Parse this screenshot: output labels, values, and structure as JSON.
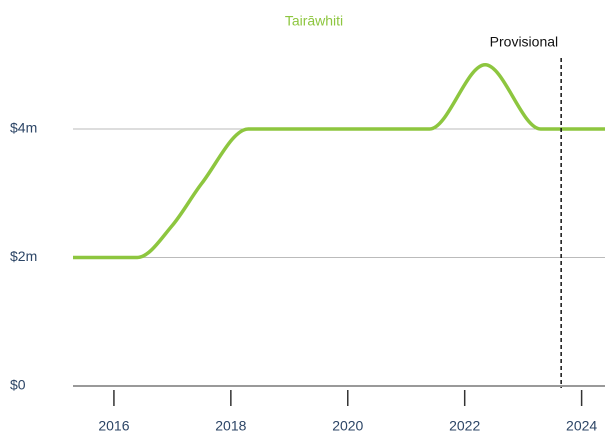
{
  "chart_data": {
    "type": "line",
    "title": "Tairāwhiti",
    "x": [
      2015.3,
      2016.4,
      2017,
      2017.5,
      2018.3,
      2021.4,
      2022.35,
      2023.3,
      2024.4
    ],
    "series": [
      {
        "color": "#8dc63f",
        "values": [
          2,
          2,
          2.5,
          3.15,
          4,
          4,
          5,
          4,
          4
        ]
      }
    ],
    "xlim": [
      2015.3,
      2024.4
    ],
    "xticks": [
      2016,
      2018,
      2020,
      2022,
      2024
    ],
    "ylim": [
      0,
      5.1
    ],
    "yticks": [
      {
        "value": 0,
        "label": "$0"
      },
      {
        "value": 2,
        "label": "$2m"
      },
      {
        "value": 4,
        "label": "$4m"
      }
    ],
    "grid": true,
    "annotations": [
      {
        "text": "Provisional",
        "x": 2023.65
      }
    ]
  }
}
